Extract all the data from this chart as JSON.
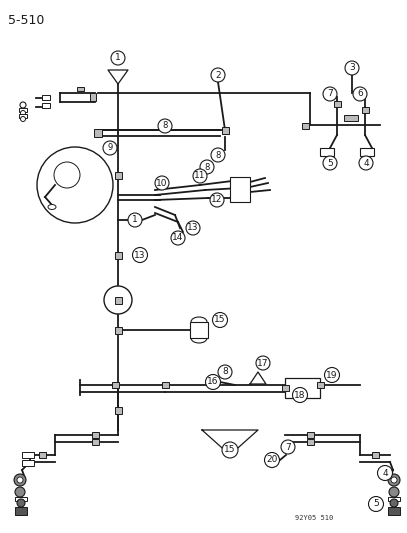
{
  "title": "5-510",
  "subtitle": "92Y05 510",
  "bg_color": "#ffffff",
  "line_color": "#1a1a1a",
  "figsize": [
    4.07,
    5.33
  ],
  "dpi": 100
}
